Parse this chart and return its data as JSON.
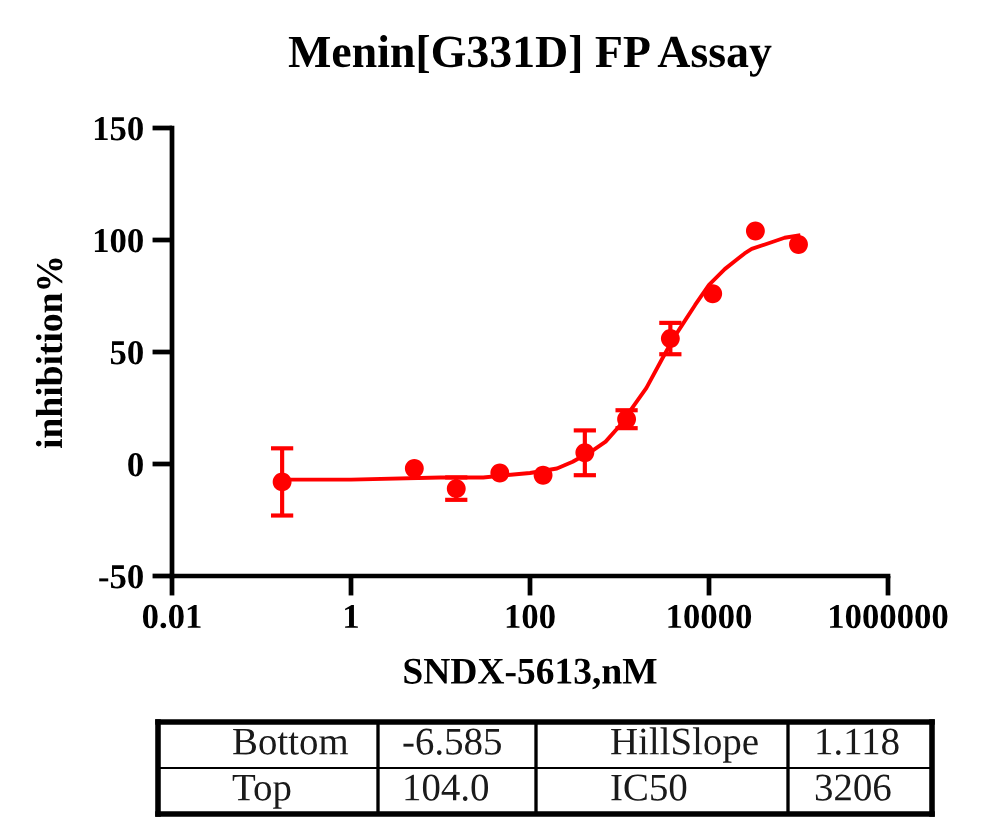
{
  "chart_data": {
    "type": "scatter",
    "title": "Menin[G331D] FP Assay",
    "xlabel": "SNDX-5613,nM",
    "ylabel": "inhibition%",
    "log": "x",
    "xlim": [
      0.01,
      1000000
    ],
    "xticks": [
      0.01,
      1,
      100,
      10000,
      1000000
    ],
    "ylim": [
      -50,
      150
    ],
    "yticks": [
      -50,
      0,
      50,
      100,
      150
    ],
    "series": [
      {
        "color": "#ff0000",
        "marker": "circle",
        "x": [
          0.17,
          5.1,
          15,
          46,
          140,
          410,
          1200,
          3700,
          11000,
          33000,
          100000
        ],
        "values": [
          -8,
          -2,
          -11,
          -4,
          -5,
          5,
          20,
          56,
          76,
          104,
          98
        ],
        "errors": [
          15,
          null,
          5,
          null,
          null,
          10,
          4,
          7,
          null,
          null,
          null
        ]
      },
      {
        "type": "line",
        "color": "#ff0000",
        "marker": "none",
        "line_style": "solid",
        "x": [
          0.17,
          1,
          10,
          30,
          100,
          200,
          300,
          500,
          700,
          1000,
          1500,
          2000,
          3000,
          4000,
          5000,
          7000,
          10000,
          15000,
          20000,
          25000,
          30000,
          50000,
          70000,
          100000
        ],
        "values": [
          -7,
          -7,
          -6,
          -6,
          -4,
          -2,
          1,
          6,
          10,
          17,
          27,
          34,
          47,
          56,
          62,
          71,
          80,
          87,
          91,
          94,
          96,
          99,
          101,
          102
        ]
      }
    ],
    "annotations": [
      "Bottom",
      "-6.585",
      "HillSlope",
      "1.118",
      "Top",
      "104.0",
      "IC50",
      "3206"
    ]
  }
}
